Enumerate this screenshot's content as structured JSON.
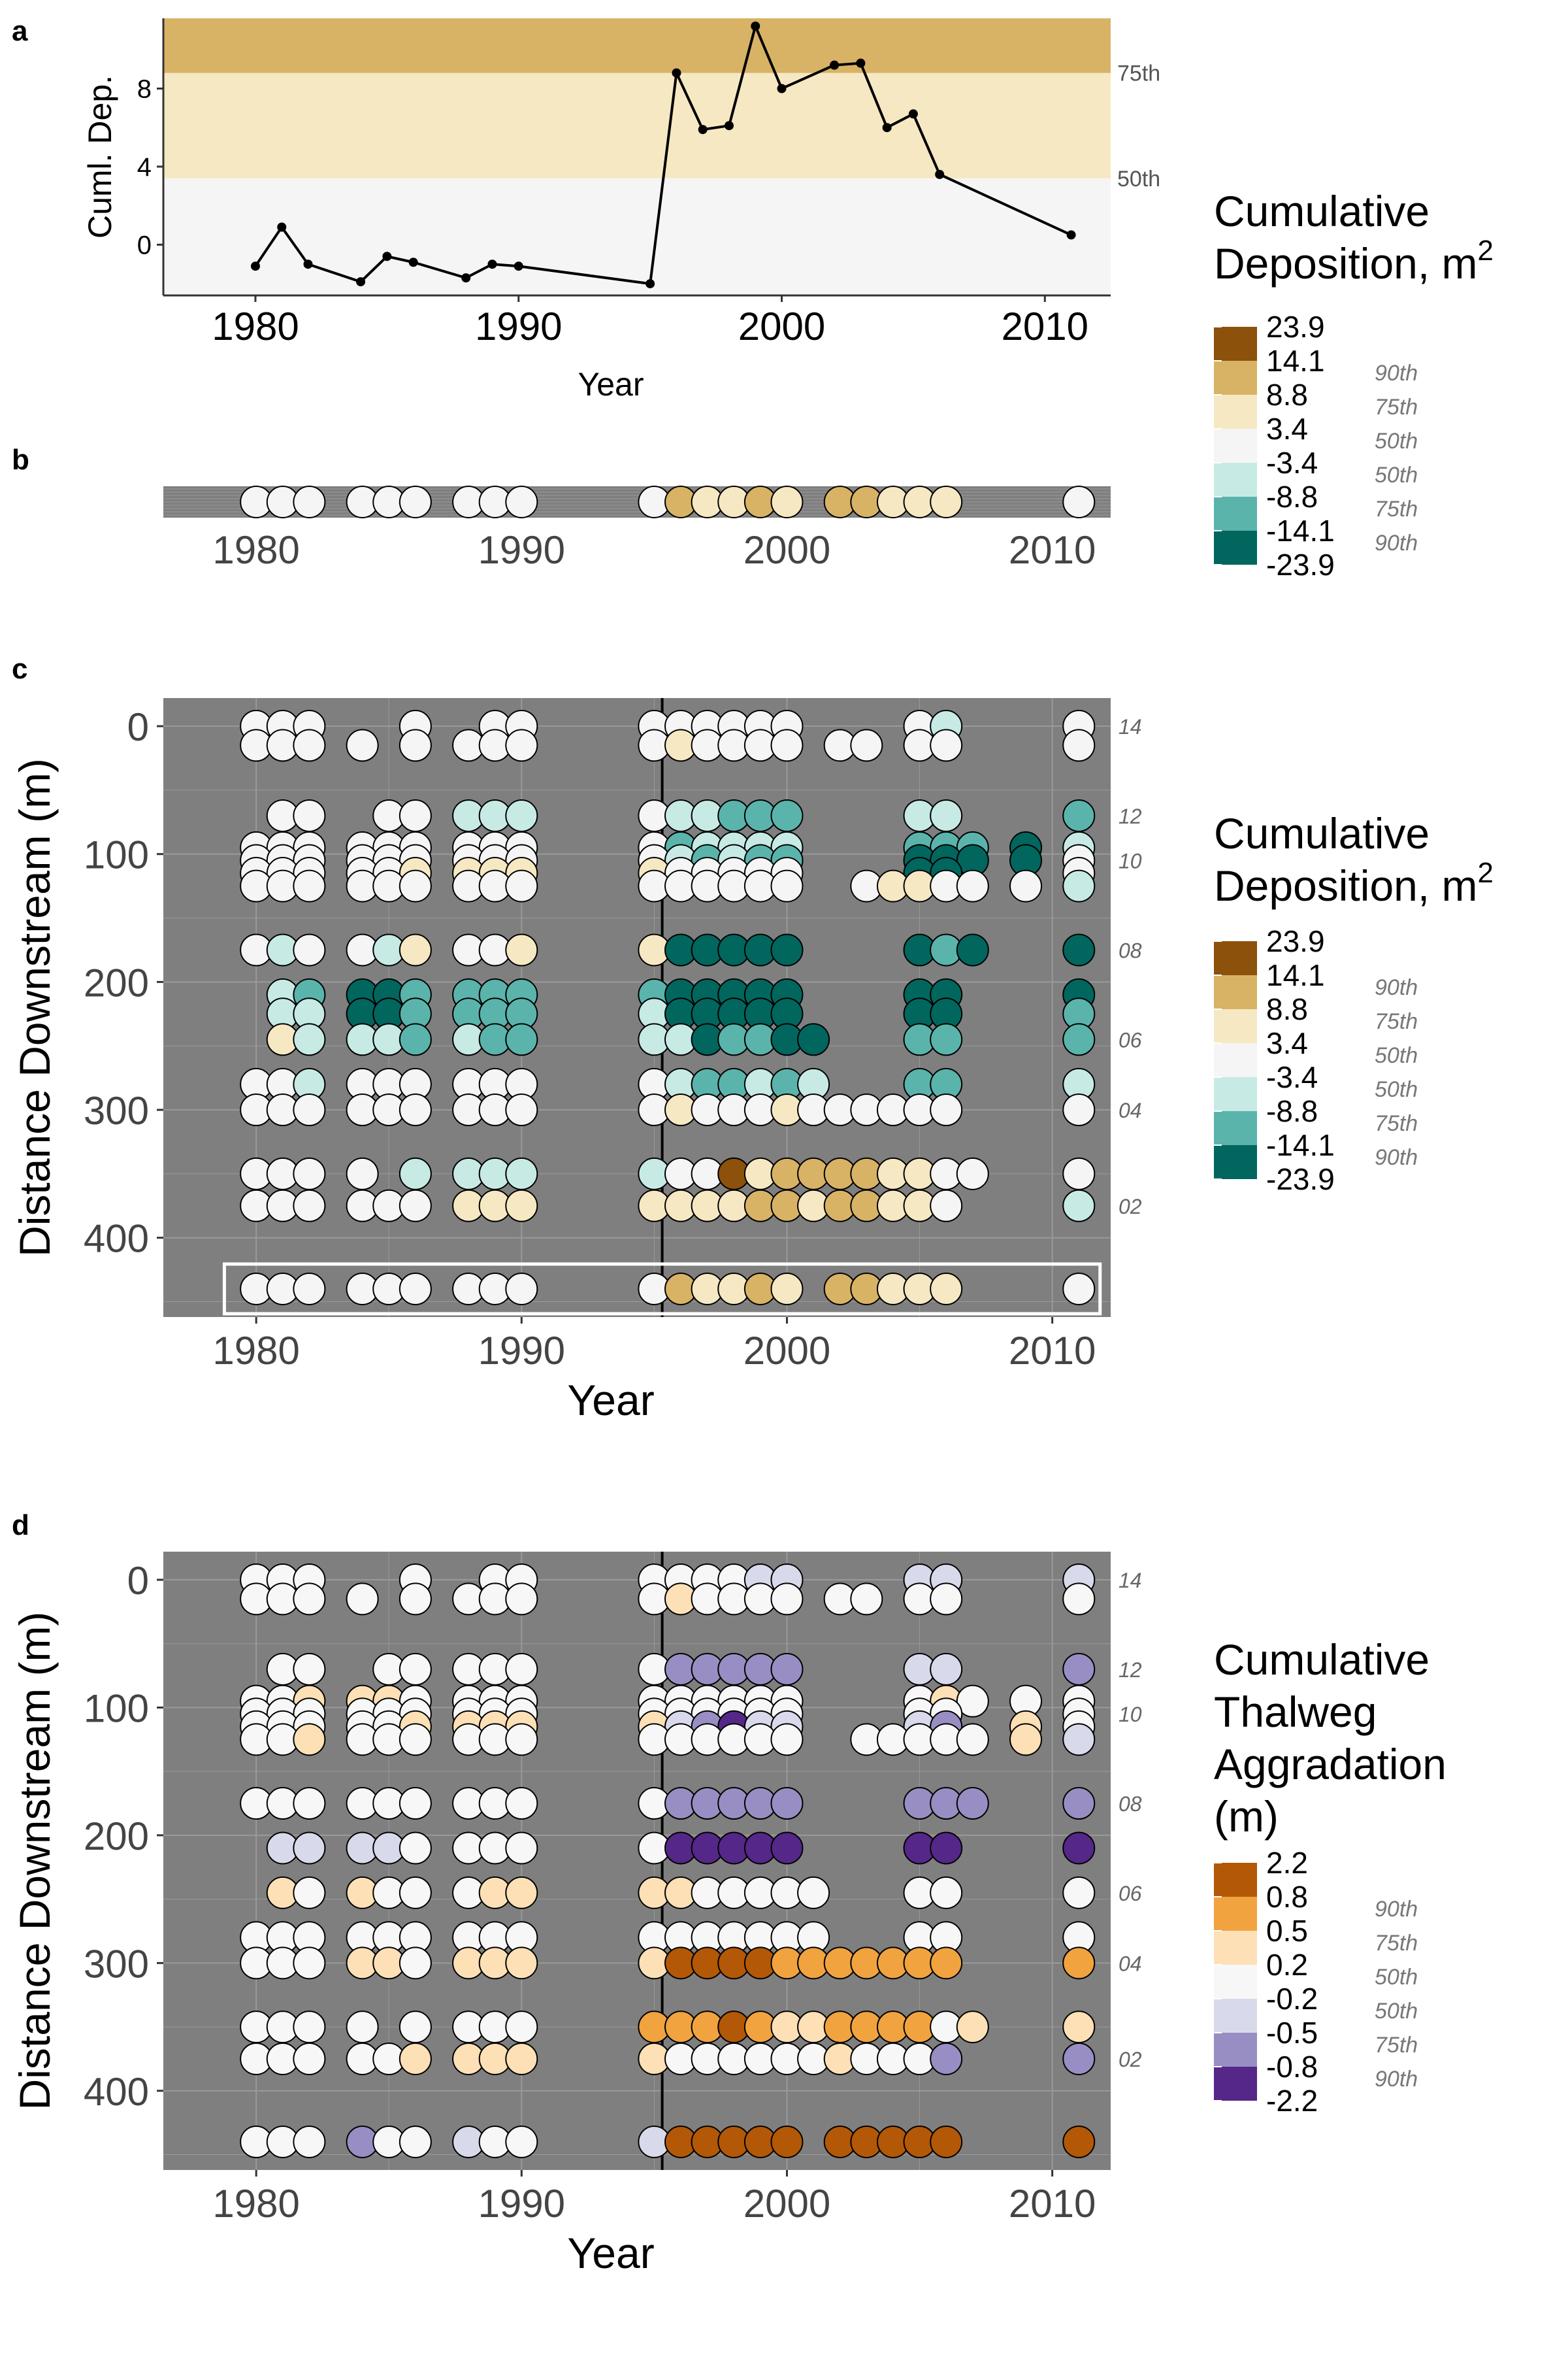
{
  "panel_labels": {
    "a": "a",
    "b": "b",
    "c": "c",
    "d": "d"
  },
  "colors": {
    "panel_bg": "#7f7f7f",
    "deposition": [
      "#8c510a",
      "#d8b365",
      "#f6e8c3",
      "#f5f5f5",
      "#c7eae5",
      "#5ab4ac",
      "#01665e"
    ],
    "aggradation": [
      "#b35806",
      "#f1a340",
      "#fee0b6",
      "#f7f7f7",
      "#d8daeb",
      "#998ec3",
      "#542788"
    ]
  },
  "legends": {
    "deposition": {
      "title_lines": [
        "Cumulative",
        "Deposition, m"
      ],
      "title_superscript": "2",
      "breaks": [
        "23.9",
        "14.1",
        "8.8",
        "3.4",
        "-3.4",
        "-8.8",
        "-14.1",
        "-23.9"
      ],
      "percentiles": [
        "90th",
        "75th",
        "50th",
        "50th",
        "75th",
        "90th"
      ]
    },
    "aggradation": {
      "title_lines": [
        "Cumulative",
        "Thalweg",
        "Aggradation",
        "(m)"
      ],
      "breaks": [
        "2.2",
        "0.8",
        "0.5",
        "0.2",
        "-0.2",
        "-0.5",
        "-0.8",
        "-2.2"
      ],
      "percentiles": [
        "90th",
        "75th",
        "50th",
        "50th",
        "75th",
        "90th"
      ]
    }
  },
  "chart_data": [
    {
      "panel": "a",
      "type": "line",
      "xlabel": "Year",
      "ylabel": "Cuml. Dep.",
      "xlim": [
        1976.5,
        2012.5
      ],
      "ylim": [
        -2.6,
        11.6
      ],
      "xticks": [
        1980,
        1990,
        2000,
        2010
      ],
      "yticks": [
        0,
        4,
        8
      ],
      "bands": [
        {
          "from": -2.6,
          "to": 3.4,
          "color": "#f5f5f5"
        },
        {
          "from": 3.4,
          "to": 8.8,
          "color": "#f6e8c3",
          "label": "50th"
        },
        {
          "from": 8.8,
          "to": 11.6,
          "color": "#d8b365",
          "label": "75th"
        }
      ],
      "x": [
        1980,
        1981,
        1982,
        1984,
        1985,
        1986,
        1988,
        1989,
        1990,
        1995,
        1996,
        1997,
        1998,
        1999,
        2000,
        2002,
        2003,
        2004,
        2005,
        2006,
        2011
      ],
      "y": [
        -1.1,
        0.9,
        -1.0,
        -1.9,
        -0.6,
        -0.9,
        -1.7,
        -1.0,
        -1.1,
        -2.0,
        8.8,
        5.9,
        6.1,
        11.2,
        8.0,
        9.2,
        9.3,
        6.0,
        6.7,
        3.6,
        0.5
      ]
    },
    {
      "panel": "b",
      "type": "scatter",
      "xticks": [
        1980,
        1990,
        2000,
        2010
      ],
      "x": [
        1980,
        1981,
        1982,
        1984,
        1985,
        1986,
        1988,
        1989,
        1990,
        1995,
        1996,
        1997,
        1998,
        1999,
        2000,
        2002,
        2003,
        2004,
        2005,
        2006,
        2011
      ],
      "color_class": [
        3,
        3,
        3,
        3,
        3,
        3,
        3,
        3,
        3,
        3,
        1,
        2,
        2,
        1,
        2,
        1,
        1,
        2,
        2,
        2,
        3
      ]
    },
    {
      "panel": "c",
      "type": "scatter",
      "xlabel": "Year",
      "ylabel": "Distance Downstream (m)",
      "xticks": [
        1980,
        1990,
        2000,
        2010
      ],
      "yticks": [
        0,
        100,
        200,
        300,
        400
      ],
      "vline_x": 1995.3,
      "site_labels": [
        {
          "y": 0,
          "label": "14"
        },
        {
          "y": 70,
          "label": "12"
        },
        {
          "y": 105,
          "label": "10"
        },
        {
          "y": 175,
          "label": "08"
        },
        {
          "y": 245,
          "label": "06"
        },
        {
          "y": 300,
          "label": "04"
        },
        {
          "y": 375,
          "label": "02"
        }
      ],
      "years": [
        1980,
        1981,
        1982,
        1984,
        1985,
        1986,
        1988,
        1989,
        1990,
        1995,
        1996,
        1997,
        1998,
        1999,
        2000,
        2001,
        2002,
        2003,
        2004,
        2005,
        2006,
        2007,
        2009,
        2011
      ],
      "rows": [
        {
          "y": 0,
          "cells": [
            3,
            3,
            3,
            null,
            null,
            3,
            null,
            3,
            3,
            3,
            3,
            3,
            3,
            3,
            3,
            null,
            null,
            null,
            null,
            3,
            4,
            null,
            null,
            3
          ]
        },
        {
          "y": 15,
          "cells": [
            3,
            3,
            3,
            3,
            null,
            3,
            3,
            3,
            3,
            3,
            2,
            3,
            3,
            3,
            3,
            null,
            3,
            3,
            null,
            3,
            3,
            null,
            null,
            3
          ]
        },
        {
          "y": 70,
          "cells": [
            null,
            3,
            3,
            null,
            3,
            3,
            4,
            4,
            4,
            3,
            4,
            4,
            5,
            5,
            5,
            null,
            null,
            null,
            null,
            4,
            4,
            null,
            null,
            5
          ]
        },
        {
          "y": 95,
          "cells": [
            3,
            3,
            3,
            3,
            3,
            3,
            3,
            3,
            3,
            3,
            5,
            4,
            4,
            4,
            4,
            null,
            null,
            null,
            null,
            5,
            5,
            5,
            6,
            4
          ]
        },
        {
          "y": 105,
          "cells": [
            3,
            3,
            3,
            3,
            3,
            3,
            3,
            3,
            3,
            3,
            4,
            5,
            4,
            5,
            5,
            null,
            null,
            null,
            null,
            6,
            6,
            6,
            6,
            3
          ]
        },
        {
          "y": 115,
          "cells": [
            3,
            3,
            3,
            3,
            3,
            2,
            2,
            2,
            2,
            2,
            3,
            3,
            3,
            3,
            3,
            null,
            null,
            null,
            null,
            6,
            6,
            null,
            null,
            3
          ]
        },
        {
          "y": 125,
          "cells": [
            3,
            3,
            3,
            3,
            3,
            3,
            3,
            3,
            3,
            3,
            3,
            3,
            3,
            3,
            3,
            null,
            null,
            3,
            2,
            2,
            3,
            3,
            3,
            4
          ]
        },
        {
          "y": 175,
          "cells": [
            3,
            4,
            3,
            3,
            4,
            2,
            3,
            3,
            2,
            2,
            6,
            6,
            6,
            6,
            6,
            null,
            null,
            null,
            null,
            6,
            5,
            6,
            null,
            6
          ]
        },
        {
          "y": 210,
          "cells": [
            null,
            4,
            5,
            6,
            6,
            5,
            5,
            5,
            5,
            5,
            6,
            6,
            6,
            6,
            6,
            null,
            null,
            null,
            null,
            6,
            6,
            null,
            null,
            6
          ]
        },
        {
          "y": 225,
          "cells": [
            null,
            4,
            4,
            6,
            6,
            5,
            5,
            5,
            5,
            4,
            6,
            6,
            6,
            6,
            6,
            null,
            null,
            null,
            null,
            6,
            6,
            null,
            null,
            5
          ]
        },
        {
          "y": 245,
          "cells": [
            null,
            2,
            4,
            4,
            4,
            5,
            4,
            5,
            5,
            4,
            4,
            6,
            5,
            5,
            6,
            6,
            null,
            null,
            null,
            5,
            5,
            null,
            null,
            5
          ]
        },
        {
          "y": 280,
          "cells": [
            3,
            3,
            4,
            3,
            3,
            3,
            3,
            3,
            3,
            3,
            4,
            5,
            5,
            4,
            5,
            4,
            null,
            null,
            null,
            5,
            5,
            null,
            null,
            4
          ]
        },
        {
          "y": 300,
          "cells": [
            3,
            3,
            3,
            3,
            3,
            3,
            3,
            3,
            3,
            3,
            2,
            3,
            3,
            3,
            2,
            3,
            3,
            3,
            3,
            3,
            3,
            null,
            null,
            3
          ]
        },
        {
          "y": 350,
          "cells": [
            3,
            3,
            3,
            3,
            null,
            4,
            4,
            4,
            4,
            4,
            3,
            3,
            0,
            2,
            1,
            1,
            1,
            1,
            2,
            2,
            3,
            3,
            null,
            3
          ]
        },
        {
          "y": 375,
          "cells": [
            3,
            3,
            3,
            3,
            3,
            3,
            2,
            2,
            2,
            2,
            2,
            2,
            2,
            1,
            1,
            2,
            1,
            1,
            2,
            2,
            3,
            null,
            null,
            4
          ]
        },
        {
          "y": 440,
          "cells": [
            3,
            3,
            3,
            3,
            3,
            3,
            3,
            3,
            3,
            3,
            1,
            2,
            2,
            1,
            2,
            null,
            1,
            1,
            2,
            2,
            2,
            null,
            null,
            3
          ]
        }
      ],
      "highlight_row_y": 440
    },
    {
      "panel": "d",
      "type": "scatter",
      "xlabel": "Year",
      "ylabel": "Distance Downstream (m)",
      "xticks": [
        1980,
        1990,
        2000,
        2010
      ],
      "yticks": [
        0,
        100,
        200,
        300,
        400
      ],
      "vline_x": 1995.3,
      "site_labels": [
        {
          "y": 0,
          "label": "14"
        },
        {
          "y": 70,
          "label": "12"
        },
        {
          "y": 105,
          "label": "10"
        },
        {
          "y": 175,
          "label": "08"
        },
        {
          "y": 245,
          "label": "06"
        },
        {
          "y": 300,
          "label": "04"
        },
        {
          "y": 375,
          "label": "02"
        }
      ],
      "years": [
        1980,
        1981,
        1982,
        1984,
        1985,
        1986,
        1988,
        1989,
        1990,
        1995,
        1996,
        1997,
        1998,
        1999,
        2000,
        2001,
        2002,
        2003,
        2004,
        2005,
        2006,
        2007,
        2009,
        2011
      ],
      "rows": [
        {
          "y": 0,
          "cells": [
            3,
            3,
            3,
            null,
            null,
            3,
            null,
            3,
            3,
            3,
            3,
            3,
            3,
            4,
            4,
            null,
            null,
            null,
            null,
            4,
            4,
            null,
            null,
            4
          ]
        },
        {
          "y": 15,
          "cells": [
            3,
            3,
            3,
            3,
            null,
            3,
            3,
            3,
            3,
            3,
            2,
            3,
            3,
            3,
            3,
            null,
            3,
            3,
            null,
            3,
            3,
            null,
            null,
            3
          ]
        },
        {
          "y": 70,
          "cells": [
            null,
            3,
            3,
            null,
            3,
            3,
            3,
            3,
            3,
            3,
            5,
            5,
            5,
            5,
            5,
            null,
            null,
            null,
            null,
            4,
            4,
            null,
            null,
            5
          ]
        },
        {
          "y": 95,
          "cells": [
            3,
            3,
            2,
            2,
            2,
            3,
            3,
            3,
            3,
            3,
            3,
            3,
            3,
            3,
            3,
            null,
            null,
            null,
            null,
            3,
            2,
            3,
            3,
            3
          ]
        },
        {
          "y": 105,
          "cells": [
            3,
            3,
            3,
            3,
            3,
            3,
            3,
            3,
            3,
            3,
            3,
            3,
            3,
            3,
            3,
            null,
            null,
            null,
            null,
            3,
            3,
            null,
            null,
            3
          ]
        },
        {
          "y": 115,
          "cells": [
            3,
            3,
            3,
            3,
            3,
            2,
            2,
            2,
            2,
            2,
            4,
            5,
            6,
            4,
            4,
            null,
            null,
            null,
            null,
            4,
            5,
            null,
            2,
            3
          ]
        },
        {
          "y": 125,
          "cells": [
            3,
            3,
            2,
            3,
            3,
            3,
            3,
            3,
            3,
            3,
            3,
            3,
            3,
            3,
            3,
            null,
            null,
            3,
            3,
            3,
            3,
            3,
            2,
            4
          ]
        },
        {
          "y": 175,
          "cells": [
            3,
            3,
            3,
            3,
            3,
            3,
            3,
            3,
            3,
            3,
            5,
            5,
            5,
            5,
            5,
            null,
            null,
            null,
            null,
            5,
            5,
            5,
            null,
            5
          ]
        },
        {
          "y": 210,
          "cells": [
            null,
            4,
            4,
            4,
            4,
            3,
            3,
            3,
            3,
            3,
            6,
            6,
            6,
            6,
            6,
            null,
            null,
            null,
            null,
            6,
            6,
            null,
            null,
            6
          ]
        },
        {
          "y": 245,
          "cells": [
            null,
            2,
            3,
            2,
            3,
            3,
            3,
            2,
            2,
            2,
            2,
            3,
            3,
            3,
            3,
            3,
            null,
            null,
            null,
            3,
            3,
            null,
            null,
            3
          ]
        },
        {
          "y": 280,
          "cells": [
            3,
            3,
            3,
            3,
            3,
            3,
            3,
            3,
            3,
            3,
            3,
            3,
            3,
            3,
            3,
            3,
            null,
            null,
            null,
            3,
            3,
            null,
            null,
            3
          ]
        },
        {
          "y": 300,
          "cells": [
            3,
            3,
            3,
            2,
            2,
            3,
            2,
            2,
            2,
            2,
            0,
            0,
            0,
            0,
            1,
            1,
            1,
            1,
            1,
            1,
            1,
            null,
            null,
            1
          ]
        },
        {
          "y": 350,
          "cells": [
            3,
            3,
            3,
            3,
            null,
            3,
            3,
            3,
            3,
            1,
            1,
            1,
            0,
            1,
            2,
            2,
            1,
            1,
            1,
            1,
            3,
            2,
            null,
            2
          ]
        },
        {
          "y": 375,
          "cells": [
            3,
            3,
            3,
            3,
            3,
            2,
            2,
            2,
            2,
            2,
            3,
            3,
            3,
            3,
            3,
            3,
            2,
            3,
            3,
            3,
            5,
            null,
            null,
            5
          ]
        },
        {
          "y": 440,
          "cells": [
            3,
            3,
            3,
            5,
            3,
            3,
            4,
            3,
            3,
            4,
            0,
            0,
            0,
            0,
            0,
            null,
            0,
            0,
            0,
            0,
            0,
            null,
            null,
            0
          ]
        }
      ]
    }
  ]
}
